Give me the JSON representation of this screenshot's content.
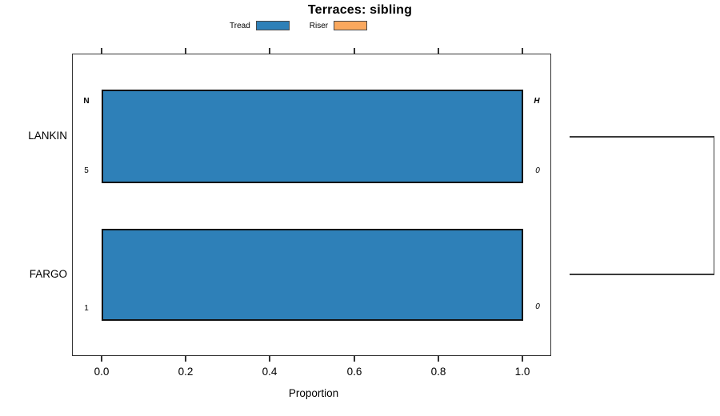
{
  "chart_data": {
    "type": "bar",
    "orientation": "horizontal",
    "title": "Terraces: sibling",
    "xlabel": "Proportion",
    "xlim": [
      0,
      1.07
    ],
    "x_tick_values": [
      0.0,
      0.2,
      0.4,
      0.6,
      0.8,
      1.0
    ],
    "x_tick_labels": [
      "0.0",
      "0.2",
      "0.4",
      "0.6",
      "0.8",
      "1.0"
    ],
    "categories": [
      "LANKIN",
      "FARGO"
    ],
    "series": [
      {
        "name": "Tread",
        "color": "#2e80b8",
        "values": [
          1.0,
          1.0
        ]
      },
      {
        "name": "Riser",
        "color": "#faa85e",
        "values": [
          0.0,
          0.0
        ]
      }
    ],
    "annotations": {
      "left_header": "N",
      "right_header": "H",
      "rows": [
        {
          "category": "LANKIN",
          "n": "5",
          "h": "0"
        },
        {
          "category": "FARGO",
          "n": "1",
          "h": "0"
        }
      ]
    },
    "legend_position": "top",
    "grid": false,
    "frame": true,
    "right_bracket_joins": [
      "LANKIN",
      "FARGO"
    ]
  },
  "colors": {
    "bar_fill": "#2e80b8",
    "riser_fill": "#faa85e",
    "bar_border": "#111111",
    "frame": "#333333",
    "bracket": "#3a3a3a",
    "text": "#000000"
  }
}
